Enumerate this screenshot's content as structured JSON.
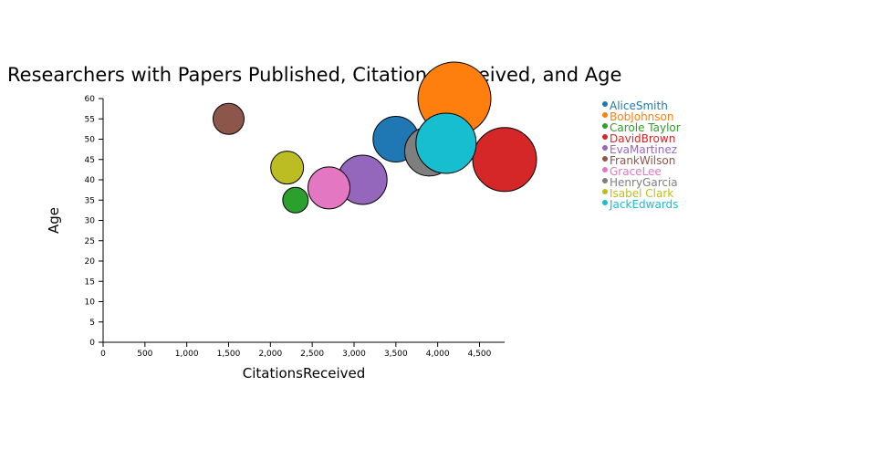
{
  "chart_data": {
    "type": "scatter",
    "title": "Researchers with Papers Published, Citations Received, and Age",
    "xlabel": "CitationsReceived",
    "ylabel": "Age",
    "xlim": [
      0,
      4800
    ],
    "ylim": [
      0,
      60
    ],
    "x_ticks": [
      0,
      500,
      1000,
      1500,
      2000,
      2500,
      3000,
      3500,
      4000,
      4500
    ],
    "x_tick_labels": [
      "0",
      "500",
      "1,000",
      "1,500",
      "2,000",
      "2,500",
      "3,000",
      "3,500",
      "4,000",
      "4,500"
    ],
    "y_ticks": [
      0,
      5,
      10,
      15,
      20,
      25,
      30,
      35,
      40,
      45,
      50,
      55,
      60
    ],
    "y_tick_labels": [
      "0",
      "5",
      "10",
      "15",
      "20",
      "25",
      "30",
      "35",
      "40",
      "45",
      "50",
      "55",
      "60"
    ],
    "grid": false,
    "legend_position": "right",
    "series": [
      {
        "name": "AliceSmith",
        "color": "#1f77b4",
        "x": 3500,
        "y": 50,
        "size": 25
      },
      {
        "name": "BobJohnson",
        "color": "#ff7f0e",
        "x": 4200,
        "y": 60,
        "size": 40
      },
      {
        "name": "Carole Taylor",
        "color": "#2ca02c",
        "x": 2300,
        "y": 35,
        "size": 14
      },
      {
        "name": "DavidBrown",
        "color": "#d62728",
        "x": 4800,
        "y": 45,
        "size": 35
      },
      {
        "name": "EvaMartinez",
        "color": "#9467bd",
        "x": 3100,
        "y": 40,
        "size": 27
      },
      {
        "name": "FrankWilson",
        "color": "#8c564b",
        "x": 1500,
        "y": 55,
        "size": 17
      },
      {
        "name": "GraceLee",
        "color": "#e377c2",
        "x": 2700,
        "y": 38,
        "size": 23
      },
      {
        "name": "HenryGarcia",
        "color": "#7f7f7f",
        "x": 3900,
        "y": 47,
        "size": 27
      },
      {
        "name": "Isabel Clark",
        "color": "#bcbd22",
        "x": 2200,
        "y": 43,
        "size": 18
      },
      {
        "name": "JackEdwards",
        "color": "#17becf",
        "x": 4100,
        "y": 49,
        "size": 33
      }
    ]
  }
}
